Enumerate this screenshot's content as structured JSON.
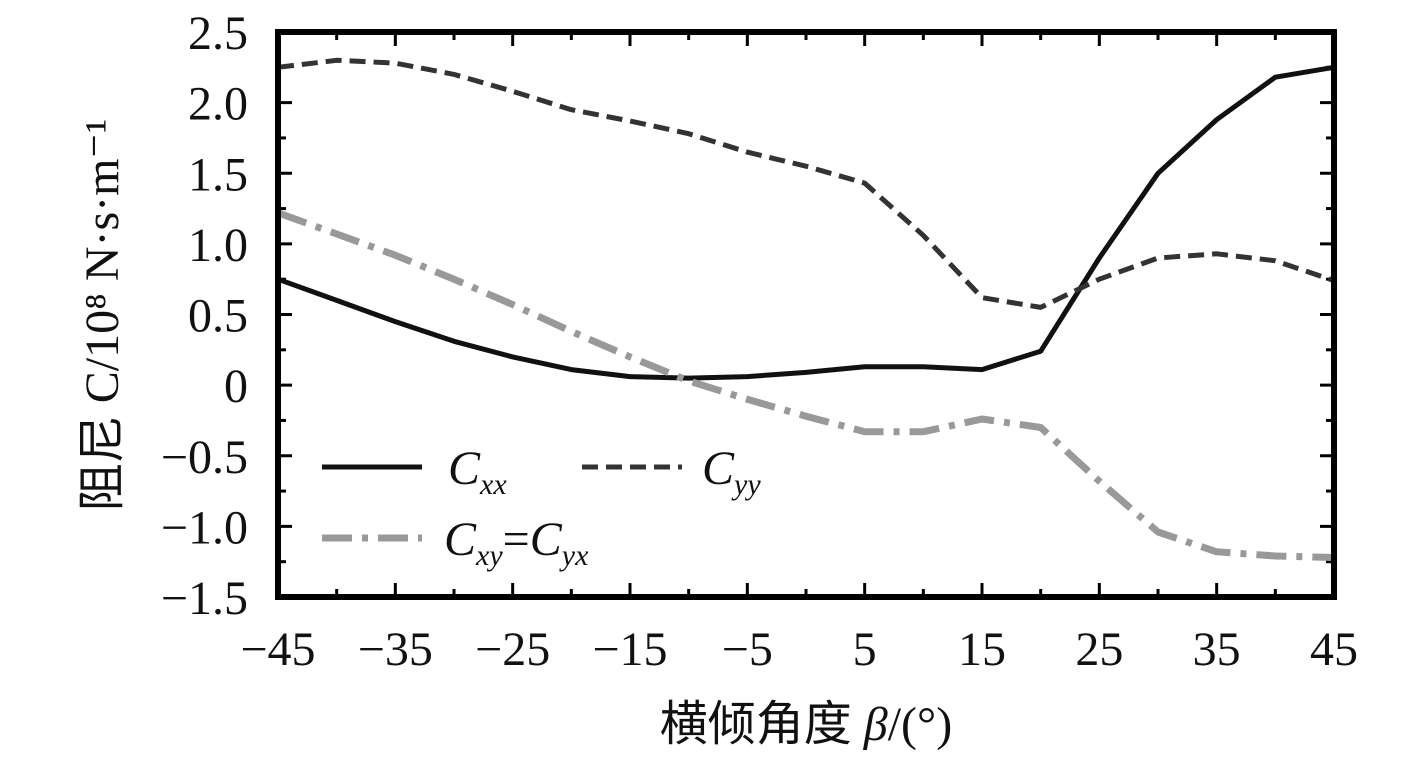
{
  "chart_data": {
    "type": "line",
    "xlabel_prefix": "横倾角度 ",
    "xlabel_symbol": "β",
    "xlabel_unit": "/(°)",
    "ylabel": "阻尼 C/10⁸ N·s·m⁻¹",
    "xlim": [
      -45,
      45
    ],
    "ylim": [
      -1.5,
      2.5
    ],
    "x_ticks": [
      "−45",
      "−35",
      "−25",
      "−15",
      "−5",
      "5",
      "15",
      "25",
      "35",
      "45"
    ],
    "y_ticks": [
      "2.5",
      "2.0",
      "1.5",
      "1.0",
      "0.5",
      "0",
      "−0.5",
      "−1.0",
      "−1.5"
    ],
    "legend_placement": "bottom-left",
    "series": [
      {
        "name": "C_xx",
        "label_main": "C",
        "label_sub": "xx",
        "style": "solid",
        "color": "#111111",
        "x": [
          -45,
          -40,
          -35,
          -30,
          -25,
          -20,
          -15,
          -10,
          -5,
          0,
          5,
          10,
          15,
          20,
          25,
          30,
          35,
          40,
          45
        ],
        "y": [
          0.75,
          0.6,
          0.45,
          0.31,
          0.2,
          0.11,
          0.06,
          0.05,
          0.06,
          0.09,
          0.13,
          0.13,
          0.11,
          0.24,
          0.9,
          1.5,
          1.88,
          2.18,
          2.25
        ]
      },
      {
        "name": "C_yy",
        "label_main": "C",
        "label_sub": "yy",
        "style": "dashed",
        "color": "#333333",
        "x": [
          -45,
          -40,
          -35,
          -30,
          -25,
          -20,
          -15,
          -10,
          -5,
          0,
          5,
          10,
          15,
          20,
          25,
          30,
          35,
          40,
          45
        ],
        "y": [
          2.25,
          2.3,
          2.28,
          2.2,
          2.08,
          1.95,
          1.87,
          1.78,
          1.65,
          1.55,
          1.43,
          1.06,
          0.62,
          0.55,
          0.75,
          0.9,
          0.93,
          0.88,
          0.74
        ]
      },
      {
        "name": "C_xy=C_yx",
        "label_main": "C",
        "label_sub": "xy",
        "label_eq": "=",
        "label_main2": "C",
        "label_sub2": "yx",
        "style": "dashdot",
        "color": "#999999",
        "x": [
          -45,
          -40,
          -35,
          -30,
          -25,
          -20,
          -15,
          -10,
          -5,
          0,
          5,
          10,
          15,
          20,
          25,
          30,
          35,
          40,
          45
        ],
        "y": [
          1.22,
          1.07,
          0.92,
          0.75,
          0.57,
          0.38,
          0.2,
          0.03,
          -0.1,
          -0.22,
          -0.33,
          -0.33,
          -0.24,
          -0.3,
          -0.68,
          -1.04,
          -1.18,
          -1.21,
          -1.22
        ]
      }
    ]
  }
}
